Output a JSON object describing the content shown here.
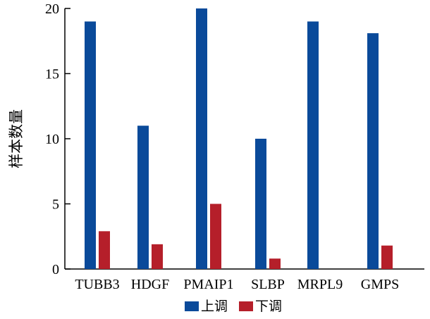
{
  "chart_data": {
    "type": "bar",
    "categories": [
      "TUBB3",
      "HDGF",
      "PMAIP1",
      "SLBP",
      "MRPL9",
      "GMPS"
    ],
    "series": [
      {
        "name": "上调",
        "color": "#0a4a9a",
        "values": [
          19,
          11,
          20,
          10,
          19,
          18.1
        ]
      },
      {
        "name": "下调",
        "color": "#b51f2a",
        "values": [
          2.9,
          1.9,
          5,
          0.8,
          0,
          1.8
        ]
      }
    ],
    "ylabel": "样本数量",
    "xlabel": "",
    "ylim": [
      0,
      20
    ],
    "yticks": [
      0,
      5,
      10,
      15,
      20
    ],
    "grid": false,
    "legend": "bottom"
  }
}
